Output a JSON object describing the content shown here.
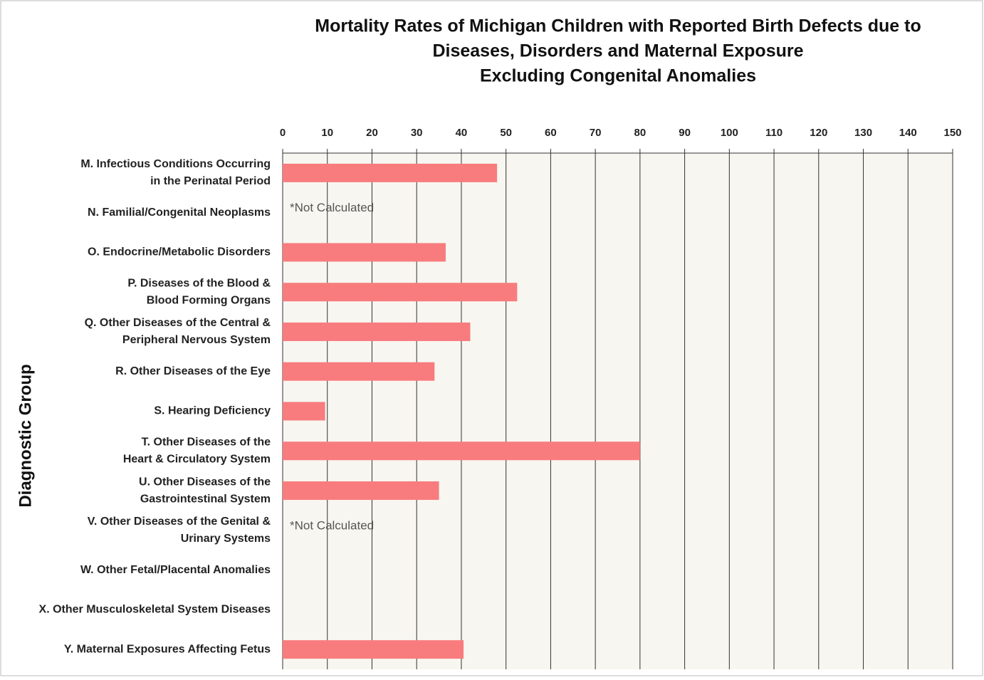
{
  "chart_data": {
    "type": "hbar",
    "title": [
      "Mortality Rates of Michigan Children with Reported Birth Defects due to",
      "Diseases, Disorders and Maternal Exposure",
      "Excluding Congenital Anomalies"
    ],
    "y_label": "Diagnostic Group",
    "categories": [
      [
        "M. Infectious Conditions Occurring",
        "in the Perinatal Period"
      ],
      [
        "N. Familial/Congenital Neoplasms"
      ],
      [
        "O. Endocrine/Metabolic Disorders"
      ],
      [
        "P. Diseases of the Blood &",
        "Blood Forming Organs"
      ],
      [
        "Q. Other Diseases of the Central &",
        "Peripheral Nervous System"
      ],
      [
        "R. Other Diseases of the Eye"
      ],
      [
        "S. Hearing Deficiency"
      ],
      [
        "T. Other Diseases of the",
        "Heart & Circulatory System"
      ],
      [
        "U. Other Diseases of the",
        "Gastrointestinal System"
      ],
      [
        "V. Other Diseases of the Genital &",
        "Urinary Systems"
      ],
      [
        "W. Other Fetal/Placental Anomalies"
      ],
      [
        "X. Other Musculoskeletal System Diseases"
      ],
      [
        "Y. Maternal Exposures Affecting Fetus"
      ]
    ],
    "values": [
      48,
      null,
      36.5,
      52.5,
      42,
      34,
      9.5,
      80,
      35,
      null,
      null,
      null,
      40.5
    ],
    "color": "#f87c7e",
    "xlim": [
      0,
      150
    ],
    "xticks": [
      0,
      10,
      20,
      30,
      40,
      50,
      60,
      70,
      80,
      90,
      100,
      110,
      120,
      130,
      140,
      150
    ],
    "grid": true,
    "annotations": [
      {
        "text": "*Not Calculated",
        "category": 1
      },
      {
        "text": "*Not Calculated",
        "category": 9
      }
    ]
  }
}
